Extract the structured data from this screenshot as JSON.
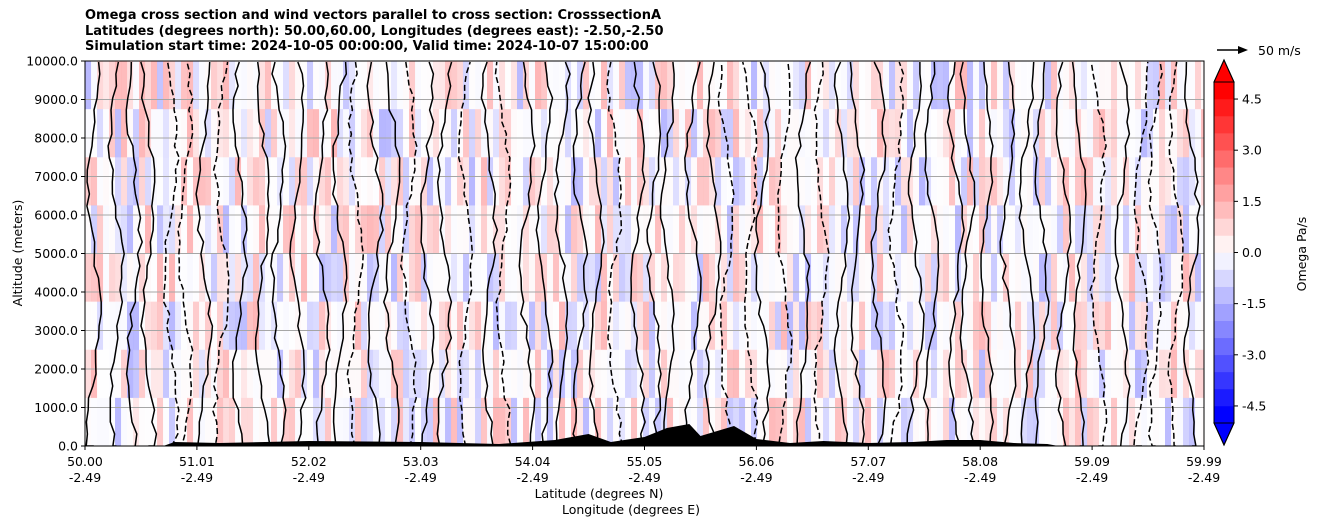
{
  "title_lines": [
    "Omega cross section and wind vectors parallel to cross section: CrosssectionA",
    "Latitudes (degrees north): 50.00,60.00, Longitudes (degrees east): -2.50,-2.50",
    "Simulation start time: 2024-10-05 00:00:00, Valid time: 2024-10-07 15:00:00"
  ],
  "chart_data": {
    "type": "heatmap",
    "ylabel": "Altitude (meters)",
    "xlabel_lat": "Latitude (degrees N)",
    "xlabel_lon": "Longitude (degrees E)",
    "ylim": [
      0,
      10000
    ],
    "y_ticks": [
      "0.0",
      "1000.0",
      "2000.0",
      "3000.0",
      "4000.0",
      "5000.0",
      "6000.0",
      "7000.0",
      "8000.0",
      "9000.0",
      "10000.0"
    ],
    "x_ticks_lat": [
      "50.00",
      "51.01",
      "52.02",
      "53.03",
      "54.04",
      "55.05",
      "56.06",
      "57.07",
      "58.08",
      "59.09",
      "59.99"
    ],
    "x_ticks_lon": [
      "-2.49",
      "-2.49",
      "-2.49",
      "-2.49",
      "-2.49",
      "-2.49",
      "-2.49",
      "-2.49",
      "-2.49",
      "-2.49",
      "-2.49"
    ],
    "colorbar_label": "Omega Pa/s",
    "colorbar_ticks": [
      "4.5",
      "3.0",
      "1.5",
      "0.0",
      "-1.5",
      "-3.0",
      "-4.5"
    ],
    "colorbar_range": [
      -5,
      5
    ],
    "colorbar_extend": "both",
    "vector_key_label": "50 m/s",
    "grid": true,
    "colors": {
      "positive": "#ff0000",
      "negative": "#0000ff",
      "terrain": "#000000"
    }
  }
}
